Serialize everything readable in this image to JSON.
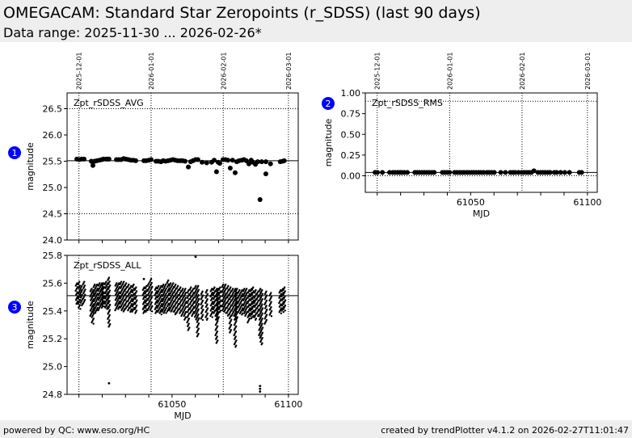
{
  "header": {
    "title": "OMEGACAM: Standard Star Zeropoints (r_SDSS) (last 90 days)",
    "subtitle": "Data range: 2025-11-30 ... 2026-02-26*"
  },
  "footer": {
    "left": "powered by QC: www.eso.org/HC",
    "right": "created by trendPlotter v4.1.2 on 2026-02-27T11:01:47"
  },
  "markers": [
    "1",
    "2",
    "3"
  ],
  "marker_color": "#0000ff",
  "chart_data": [
    {
      "type": "scatter",
      "panel": "Zpt_rSDSS_AVG",
      "ylabel": "magnitude",
      "xlabel": "",
      "xlim": [
        61004.9,
        61104.2
      ],
      "ylim": [
        24.0,
        26.8
      ],
      "yticks": [
        "24.0",
        "24.5",
        "25.0",
        "25.5",
        "26.0",
        "26.5"
      ],
      "xticks": [],
      "reference": 25.51,
      "thresholds": [
        24.5,
        26.5
      ],
      "date_lines": [
        {
          "mjd": 61010,
          "label": "2025-12-01"
        },
        {
          "mjd": 61041,
          "label": "2026-01-01"
        },
        {
          "mjd": 61072,
          "label": "2026-02-01"
        },
        {
          "mjd": 61100,
          "label": "2026-03-01"
        }
      ],
      "points": [
        [
          61009.1,
          25.54
        ],
        [
          61010.1,
          25.53
        ],
        [
          61011.1,
          25.54
        ],
        [
          61012.2,
          25.54
        ],
        [
          61015.3,
          25.5
        ],
        [
          61016.0,
          25.42
        ],
        [
          61016.7,
          25.5
        ],
        [
          61017.7,
          25.51
        ],
        [
          61018.8,
          25.52
        ],
        [
          61019.8,
          25.53
        ],
        [
          61020.5,
          25.54
        ],
        [
          61021.6,
          25.54
        ],
        [
          61022.3,
          25.54
        ],
        [
          61022.9,
          25.54
        ],
        [
          61026.1,
          25.53
        ],
        [
          61027.1,
          25.53
        ],
        [
          61028.1,
          25.53
        ],
        [
          61029.2,
          25.55
        ],
        [
          61030.2,
          25.54
        ],
        [
          61031.3,
          25.53
        ],
        [
          61032.3,
          25.52
        ],
        [
          61033.4,
          25.52
        ],
        [
          61034.4,
          25.51
        ],
        [
          61037.9,
          25.51
        ],
        [
          61038.9,
          25.51
        ],
        [
          61040.0,
          25.52
        ],
        [
          61041.0,
          25.53
        ],
        [
          61043.1,
          25.5
        ],
        [
          61044.1,
          25.5
        ],
        [
          61045.2,
          25.49
        ],
        [
          61046.2,
          25.51
        ],
        [
          61047.2,
          25.5
        ],
        [
          61048.3,
          25.51
        ],
        [
          61049.3,
          25.52
        ],
        [
          61050.4,
          25.53
        ],
        [
          61051.4,
          25.52
        ],
        [
          61052.4,
          25.51
        ],
        [
          61053.5,
          25.51
        ],
        [
          61054.5,
          25.51
        ],
        [
          61055.6,
          25.5
        ],
        [
          61057.0,
          25.39
        ],
        [
          61058.0,
          25.49
        ],
        [
          61059.0,
          25.51
        ],
        [
          61060.1,
          25.53
        ],
        [
          61061.1,
          25.53
        ],
        [
          61062.9,
          25.48
        ],
        [
          61064.9,
          25.47
        ],
        [
          61067.0,
          25.48
        ],
        [
          61068.1,
          25.52
        ],
        [
          61069.1,
          25.3
        ],
        [
          61069.8,
          25.48
        ],
        [
          61070.5,
          25.46
        ],
        [
          61071.9,
          25.53
        ],
        [
          61072.9,
          25.53
        ],
        [
          61074.0,
          25.52
        ],
        [
          61075.0,
          25.37
        ],
        [
          61076.0,
          25.52
        ],
        [
          61077.1,
          25.28
        ],
        [
          61077.8,
          25.49
        ],
        [
          61078.8,
          25.51
        ],
        [
          61079.9,
          25.52
        ],
        [
          61080.9,
          25.53
        ],
        [
          61081.9,
          25.51
        ],
        [
          61083.0,
          25.45
        ],
        [
          61084.0,
          25.52
        ],
        [
          61084.7,
          25.48
        ],
        [
          61085.8,
          25.44
        ],
        [
          61086.8,
          25.49
        ],
        [
          61087.8,
          24.77
        ],
        [
          61088.5,
          25.49
        ],
        [
          61090.3,
          25.26
        ],
        [
          61090.3,
          25.49
        ],
        [
          61092.3,
          25.45
        ],
        [
          61096.5,
          25.49
        ],
        [
          61097.5,
          25.5
        ],
        [
          61098.2,
          25.51
        ]
      ]
    },
    {
      "type": "scatter",
      "panel": "Zpt_rSDSS_RMS",
      "ylabel": "magnitude",
      "xlabel": "MJD",
      "xlim": [
        61004.9,
        61104.2
      ],
      "ylim": [
        -0.2,
        1.0
      ],
      "yticks": [
        "0.00",
        "0.25",
        "0.50",
        "0.75",
        "1.00"
      ],
      "xticks": [
        "61050",
        "61100"
      ],
      "reference": 0.04,
      "thresholds": [
        0.0,
        0.9
      ],
      "date_lines": [
        {
          "mjd": 61010,
          "label": "2025-12-01"
        },
        {
          "mjd": 61041,
          "label": "2026-01-01"
        },
        {
          "mjd": 61072,
          "label": "2026-02-01"
        },
        {
          "mjd": 61100,
          "label": "2026-03-01"
        }
      ],
      "points": [
        [
          61009.1,
          0.04
        ],
        [
          61010.1,
          0.04
        ],
        [
          61012.2,
          0.04
        ],
        [
          61015.3,
          0.04
        ],
        [
          61016.7,
          0.04
        ],
        [
          61017.7,
          0.04
        ],
        [
          61018.8,
          0.04
        ],
        [
          61019.8,
          0.04
        ],
        [
          61020.5,
          0.04
        ],
        [
          61021.6,
          0.04
        ],
        [
          61022.9,
          0.04
        ],
        [
          61026.1,
          0.04
        ],
        [
          61027.1,
          0.04
        ],
        [
          61028.1,
          0.04
        ],
        [
          61029.2,
          0.04
        ],
        [
          61030.2,
          0.04
        ],
        [
          61031.3,
          0.04
        ],
        [
          61032.3,
          0.04
        ],
        [
          61033.4,
          0.04
        ],
        [
          61034.4,
          0.04
        ],
        [
          61037.9,
          0.04
        ],
        [
          61038.9,
          0.04
        ],
        [
          61040.0,
          0.04
        ],
        [
          61041.0,
          0.04
        ],
        [
          61043.1,
          0.04
        ],
        [
          61044.1,
          0.04
        ],
        [
          61045.2,
          0.04
        ],
        [
          61046.2,
          0.04
        ],
        [
          61047.2,
          0.04
        ],
        [
          61048.3,
          0.04
        ],
        [
          61049.3,
          0.04
        ],
        [
          61050.4,
          0.04
        ],
        [
          61051.4,
          0.04
        ],
        [
          61052.4,
          0.04
        ],
        [
          61053.5,
          0.04
        ],
        [
          61054.5,
          0.04
        ],
        [
          61055.6,
          0.04
        ],
        [
          61057.0,
          0.04
        ],
        [
          61058.0,
          0.04
        ],
        [
          61059.0,
          0.04
        ],
        [
          61060.1,
          0.04
        ],
        [
          61062.9,
          0.04
        ],
        [
          61064.9,
          0.04
        ],
        [
          61067.0,
          0.04
        ],
        [
          61068.1,
          0.04
        ],
        [
          61069.1,
          0.04
        ],
        [
          61070.5,
          0.04
        ],
        [
          61071.9,
          0.04
        ],
        [
          61072.9,
          0.04
        ],
        [
          61074.0,
          0.04
        ],
        [
          61075.0,
          0.04
        ],
        [
          61076.0,
          0.04
        ],
        [
          61077.1,
          0.06
        ],
        [
          61078.8,
          0.04
        ],
        [
          61079.9,
          0.04
        ],
        [
          61080.9,
          0.04
        ],
        [
          61081.9,
          0.04
        ],
        [
          61083.0,
          0.04
        ],
        [
          61084.0,
          0.04
        ],
        [
          61085.8,
          0.04
        ],
        [
          61086.8,
          0.04
        ],
        [
          61088.5,
          0.04
        ],
        [
          61090.3,
          0.04
        ],
        [
          61092.3,
          0.04
        ],
        [
          61096.5,
          0.04
        ],
        [
          61097.5,
          0.04
        ]
      ]
    },
    {
      "type": "scatter",
      "panel": "Zpt_rSDSS_ALL",
      "ylabel": "magnitude",
      "xlabel": "MJD",
      "xlim": [
        61004.9,
        61104.2
      ],
      "ylim": [
        24.8,
        25.8
      ],
      "yticks": [
        "24.8",
        "25.0",
        "25.2",
        "25.4",
        "25.6",
        "25.8"
      ],
      "xticks": [
        "61050",
        "61100"
      ],
      "reference": 25.51,
      "date_lines": [
        {
          "mjd": 61010,
          "label": "2025-12-01"
        },
        {
          "mjd": 61041,
          "label": "2026-01-01"
        },
        {
          "mjd": 61072,
          "label": "2026-02-01"
        },
        {
          "mjd": 61100,
          "label": "2026-03-01"
        }
      ],
      "night_ranges": [
        [
          61009.1,
          25.45,
          25.6
        ],
        [
          61010.1,
          25.41,
          25.61
        ],
        [
          61011.1,
          25.44,
          25.58
        ],
        [
          61012.2,
          25.45,
          25.61
        ],
        [
          61015.3,
          25.36,
          25.56
        ],
        [
          61016.0,
          25.3,
          25.55
        ],
        [
          61016.7,
          25.38,
          25.59
        ],
        [
          61017.7,
          25.39,
          25.59
        ],
        [
          61018.8,
          25.4,
          25.6
        ],
        [
          61019.8,
          25.42,
          25.6
        ],
        [
          61020.5,
          25.43,
          25.6
        ],
        [
          61021.6,
          25.42,
          25.61
        ],
        [
          61022.3,
          25.41,
          25.6
        ],
        [
          61022.9,
          25.28,
          25.64
        ],
        [
          61026.1,
          25.4,
          25.6
        ],
        [
          61027.1,
          25.41,
          25.6
        ],
        [
          61028.1,
          25.4,
          25.61
        ],
        [
          61029.2,
          25.39,
          25.61
        ],
        [
          61030.2,
          25.41,
          25.6
        ],
        [
          61031.3,
          25.4,
          25.59
        ],
        [
          61032.3,
          25.39,
          25.58
        ],
        [
          61033.4,
          25.39,
          25.59
        ],
        [
          61034.4,
          25.38,
          25.57
        ],
        [
          61037.9,
          25.38,
          25.57
        ],
        [
          61038.9,
          25.39,
          25.58
        ],
        [
          61040.0,
          25.4,
          25.6
        ],
        [
          61041.0,
          25.39,
          25.63
        ],
        [
          61043.1,
          25.38,
          25.57
        ],
        [
          61044.1,
          25.39,
          25.58
        ],
        [
          61045.2,
          25.37,
          25.58
        ],
        [
          61046.2,
          25.38,
          25.59
        ],
        [
          61047.2,
          25.38,
          25.59
        ],
        [
          61048.3,
          25.39,
          25.62
        ],
        [
          61049.3,
          25.39,
          25.6
        ],
        [
          61050.4,
          25.39,
          25.6
        ],
        [
          61051.4,
          25.37,
          25.59
        ],
        [
          61052.4,
          25.38,
          25.58
        ],
        [
          61053.5,
          25.38,
          25.57
        ],
        [
          61054.5,
          25.36,
          25.56
        ],
        [
          61055.6,
          25.33,
          25.56
        ],
        [
          61057.0,
          25.26,
          25.55
        ],
        [
          61058.0,
          25.38,
          25.57
        ],
        [
          61059.0,
          25.36,
          25.56
        ],
        [
          61060.1,
          25.33,
          25.58
        ],
        [
          61061.1,
          25.21,
          25.58
        ],
        [
          61062.9,
          25.33,
          25.54
        ],
        [
          61064.9,
          25.33,
          25.55
        ],
        [
          61067.0,
          25.35,
          25.56
        ],
        [
          61068.1,
          25.38,
          25.57
        ],
        [
          61069.1,
          25.16,
          25.56
        ],
        [
          61069.8,
          25.33,
          25.56
        ],
        [
          61070.5,
          25.39,
          25.57
        ],
        [
          61071.9,
          25.4,
          25.59
        ],
        [
          61072.9,
          25.38,
          25.59
        ],
        [
          61074.0,
          25.36,
          25.58
        ],
        [
          61075.0,
          25.24,
          25.57
        ],
        [
          61076.0,
          25.36,
          25.56
        ],
        [
          61077.1,
          25.14,
          25.56
        ],
        [
          61077.8,
          25.33,
          25.56
        ],
        [
          61078.8,
          25.38,
          25.55
        ],
        [
          61079.9,
          25.37,
          25.55
        ],
        [
          61080.9,
          25.38,
          25.56
        ],
        [
          61081.9,
          25.36,
          25.56
        ],
        [
          61083.0,
          25.31,
          25.55
        ],
        [
          61084.0,
          25.34,
          25.56
        ],
        [
          61084.7,
          25.35,
          25.57
        ],
        [
          61085.8,
          25.33,
          25.55
        ],
        [
          61086.8,
          25.36,
          25.54
        ],
        [
          61087.8,
          25.2,
          25.56
        ],
        [
          61088.5,
          25.15,
          25.55
        ],
        [
          61090.3,
          25.3,
          25.54
        ],
        [
          61092.3,
          25.36,
          25.53
        ],
        [
          61096.5,
          25.38,
          25.55
        ],
        [
          61097.5,
          25.39,
          25.56
        ],
        [
          61098.2,
          25.4,
          25.57
        ]
      ],
      "outliers": [
        [
          61022.9,
          24.88
        ],
        [
          61037.9,
          25.63
        ],
        [
          61060.1,
          25.79
        ],
        [
          61087.8,
          24.82
        ],
        [
          61087.8,
          24.84
        ],
        [
          61087.8,
          24.86
        ]
      ]
    }
  ]
}
